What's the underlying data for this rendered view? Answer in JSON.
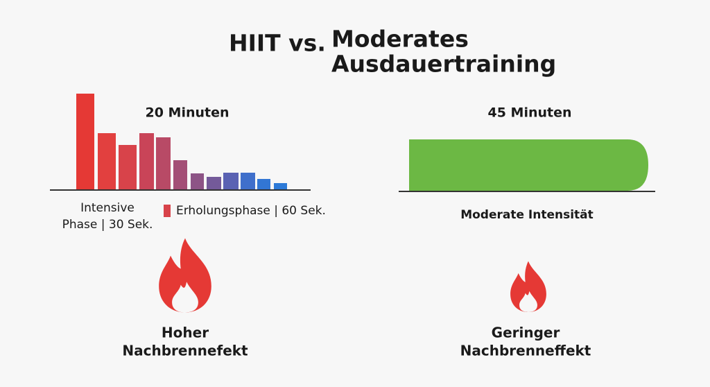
{
  "title": {
    "lines": [
      "HIIT vs.",
      "Moderates",
      "Ausdauertraining"
    ]
  },
  "hiit": {
    "duration": "20 Minuten",
    "intense_label": [
      "Intensive",
      "Phase | 30 Sek."
    ],
    "recovery_label": "Erholungsphase | 60 Sek.",
    "effect": [
      "Hoher",
      "Nachbrennefekt"
    ]
  },
  "moderate": {
    "duration": "45 Minuten",
    "label": "Moderate Intensität",
    "effect": [
      "Geringer",
      "Nachbrenneffekt"
    ]
  }
}
